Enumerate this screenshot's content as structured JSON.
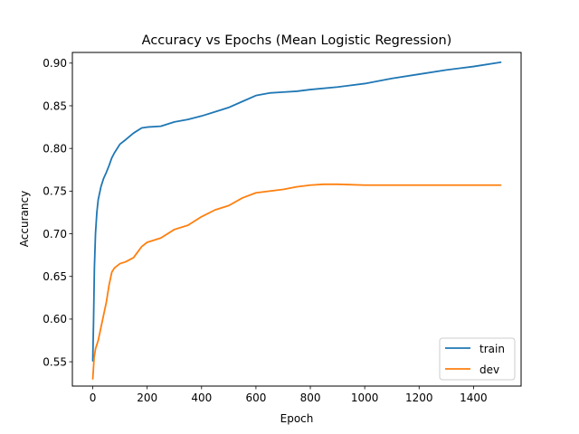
{
  "chart_data": {
    "type": "line",
    "title": "Accuracy vs Epochs (Mean Logistic Regression)",
    "xlabel": "Epoch",
    "ylabel": "Accurancy",
    "xlim": [
      -75,
      1575
    ],
    "ylim": [
      0.5215,
      0.9125
    ],
    "xticks": [
      0,
      200,
      400,
      600,
      800,
      1000,
      1200,
      1400
    ],
    "xtick_labels": [
      "0",
      "200",
      "400",
      "600",
      "800",
      "1000",
      "1200",
      "1400"
    ],
    "yticks": [
      0.55,
      0.6,
      0.65,
      0.7,
      0.75,
      0.8,
      0.85,
      0.9
    ],
    "ytick_labels": [
      "0.55",
      "0.60",
      "0.65",
      "0.70",
      "0.75",
      "0.80",
      "0.85",
      "0.90"
    ],
    "grid": false,
    "legend_position": "lower-right",
    "series": [
      {
        "name": "train",
        "color": "#1f77b4",
        "x": [
          0,
          3,
          6,
          10,
          15,
          20,
          30,
          40,
          50,
          60,
          70,
          80,
          90,
          100,
          120,
          150,
          180,
          200,
          250,
          300,
          350,
          400,
          450,
          500,
          550,
          600,
          650,
          700,
          750,
          800,
          900,
          1000,
          1100,
          1200,
          1300,
          1400,
          1500
        ],
        "values": [
          0.551,
          0.6,
          0.66,
          0.7,
          0.725,
          0.74,
          0.755,
          0.765,
          0.772,
          0.78,
          0.789,
          0.795,
          0.8,
          0.805,
          0.81,
          0.818,
          0.824,
          0.825,
          0.826,
          0.831,
          0.834,
          0.838,
          0.843,
          0.848,
          0.855,
          0.862,
          0.865,
          0.866,
          0.867,
          0.869,
          0.872,
          0.876,
          0.882,
          0.887,
          0.892,
          0.896,
          0.901
        ]
      },
      {
        "name": "dev",
        "color": "#ff7f0e",
        "x": [
          0,
          5,
          10,
          20,
          30,
          40,
          50,
          60,
          70,
          80,
          100,
          120,
          150,
          180,
          200,
          220,
          250,
          300,
          350,
          400,
          450,
          500,
          550,
          600,
          650,
          700,
          750,
          800,
          850,
          900,
          1000,
          1200,
          1500
        ],
        "values": [
          0.53,
          0.555,
          0.565,
          0.575,
          0.59,
          0.605,
          0.62,
          0.64,
          0.655,
          0.66,
          0.665,
          0.667,
          0.672,
          0.685,
          0.69,
          0.692,
          0.695,
          0.705,
          0.71,
          0.72,
          0.728,
          0.733,
          0.742,
          0.748,
          0.75,
          0.752,
          0.755,
          0.757,
          0.758,
          0.758,
          0.757,
          0.757,
          0.757
        ]
      }
    ]
  }
}
